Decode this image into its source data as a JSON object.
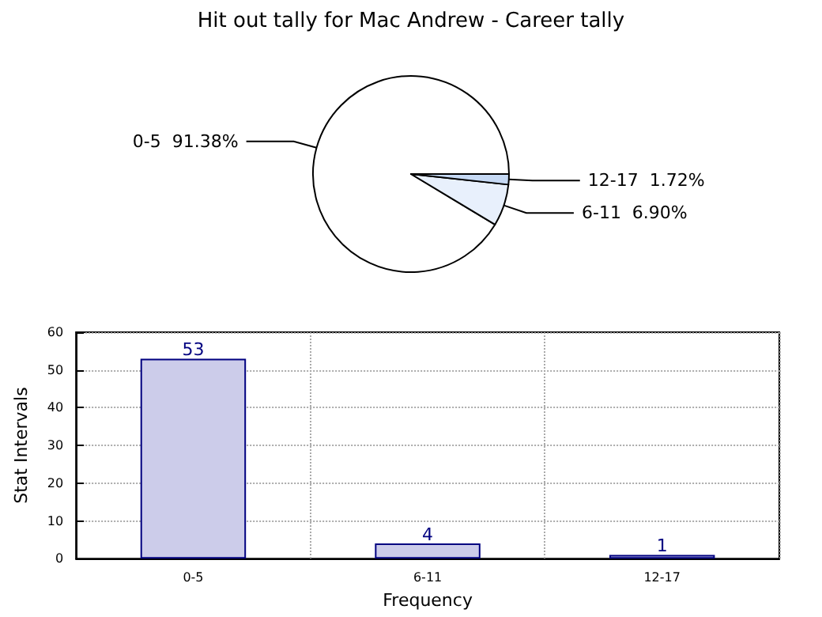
{
  "chart_data": [
    {
      "type": "pie",
      "title": "Hit out tally for Mac Andrew - Career tally",
      "categories": [
        "0-5",
        "6-11",
        "12-17"
      ],
      "values": [
        91.38,
        6.9,
        1.72
      ],
      "colors": [
        "#ffffff",
        "#e8f0fc",
        "#c6d9f4"
      ],
      "value_labels": [
        "91.38%",
        "6.90%",
        "1.72%"
      ]
    },
    {
      "type": "bar",
      "xlabel": "Frequency",
      "ylabel": "Stat Intervals",
      "categories": [
        "0-5",
        "6-11",
        "12-17"
      ],
      "values": [
        53,
        4,
        1
      ],
      "color": "#ccccea",
      "ylim": [
        0,
        60
      ],
      "yticks": [
        0,
        10,
        20,
        30,
        40,
        50,
        60
      ],
      "grid": true,
      "data_labels": true
    }
  ]
}
